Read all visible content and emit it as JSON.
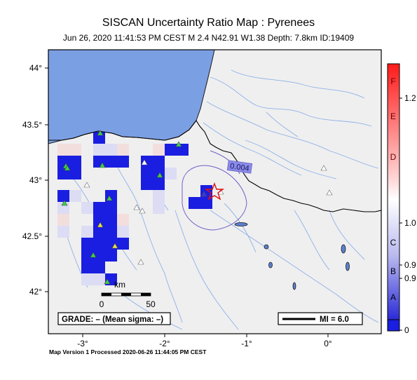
{
  "header": {
    "title": "SISCAN Uncertainty Ratio Map : Pyrenees",
    "subtitle": "Jun 26, 2020 11:41:53 PM CEST   M 2.4   N42.91 W1.38   Depth: 7.8km   ID:19409"
  },
  "axes": {
    "lon_ticks": [
      "-3°",
      "-2°",
      "-1°",
      "0°"
    ],
    "lat_ticks": [
      "44°",
      "43.5°",
      "43°",
      "42.5°",
      "42°"
    ]
  },
  "map": {
    "contour_label": "0.004",
    "scale_bar": {
      "label_start": "0",
      "label_end": "50",
      "unit": "km"
    },
    "grade_box": "GRADE: – (Mean sigma: –)",
    "mi_legend": "MI = 6.0",
    "colors": {
      "ocean": "#7b9fe3",
      "land": "#efefef",
      "river": "#8fb1e8",
      "border": "#000000",
      "cell_blue": "#1a1ee0"
    }
  },
  "colorbar": {
    "grades": [
      "F",
      "E",
      "D",
      "C",
      "B",
      "A"
    ],
    "values": [
      "1.2",
      "1.0",
      "0.9",
      "0.9",
      "0"
    ],
    "colors": {
      "top": "#ff1a1a",
      "mid": "#ffffff",
      "bottom": "#2a2ad8"
    }
  },
  "footer": {
    "text": "Map Version 1 Processed 2020-06-26 11:44:05 PM CEST"
  }
}
